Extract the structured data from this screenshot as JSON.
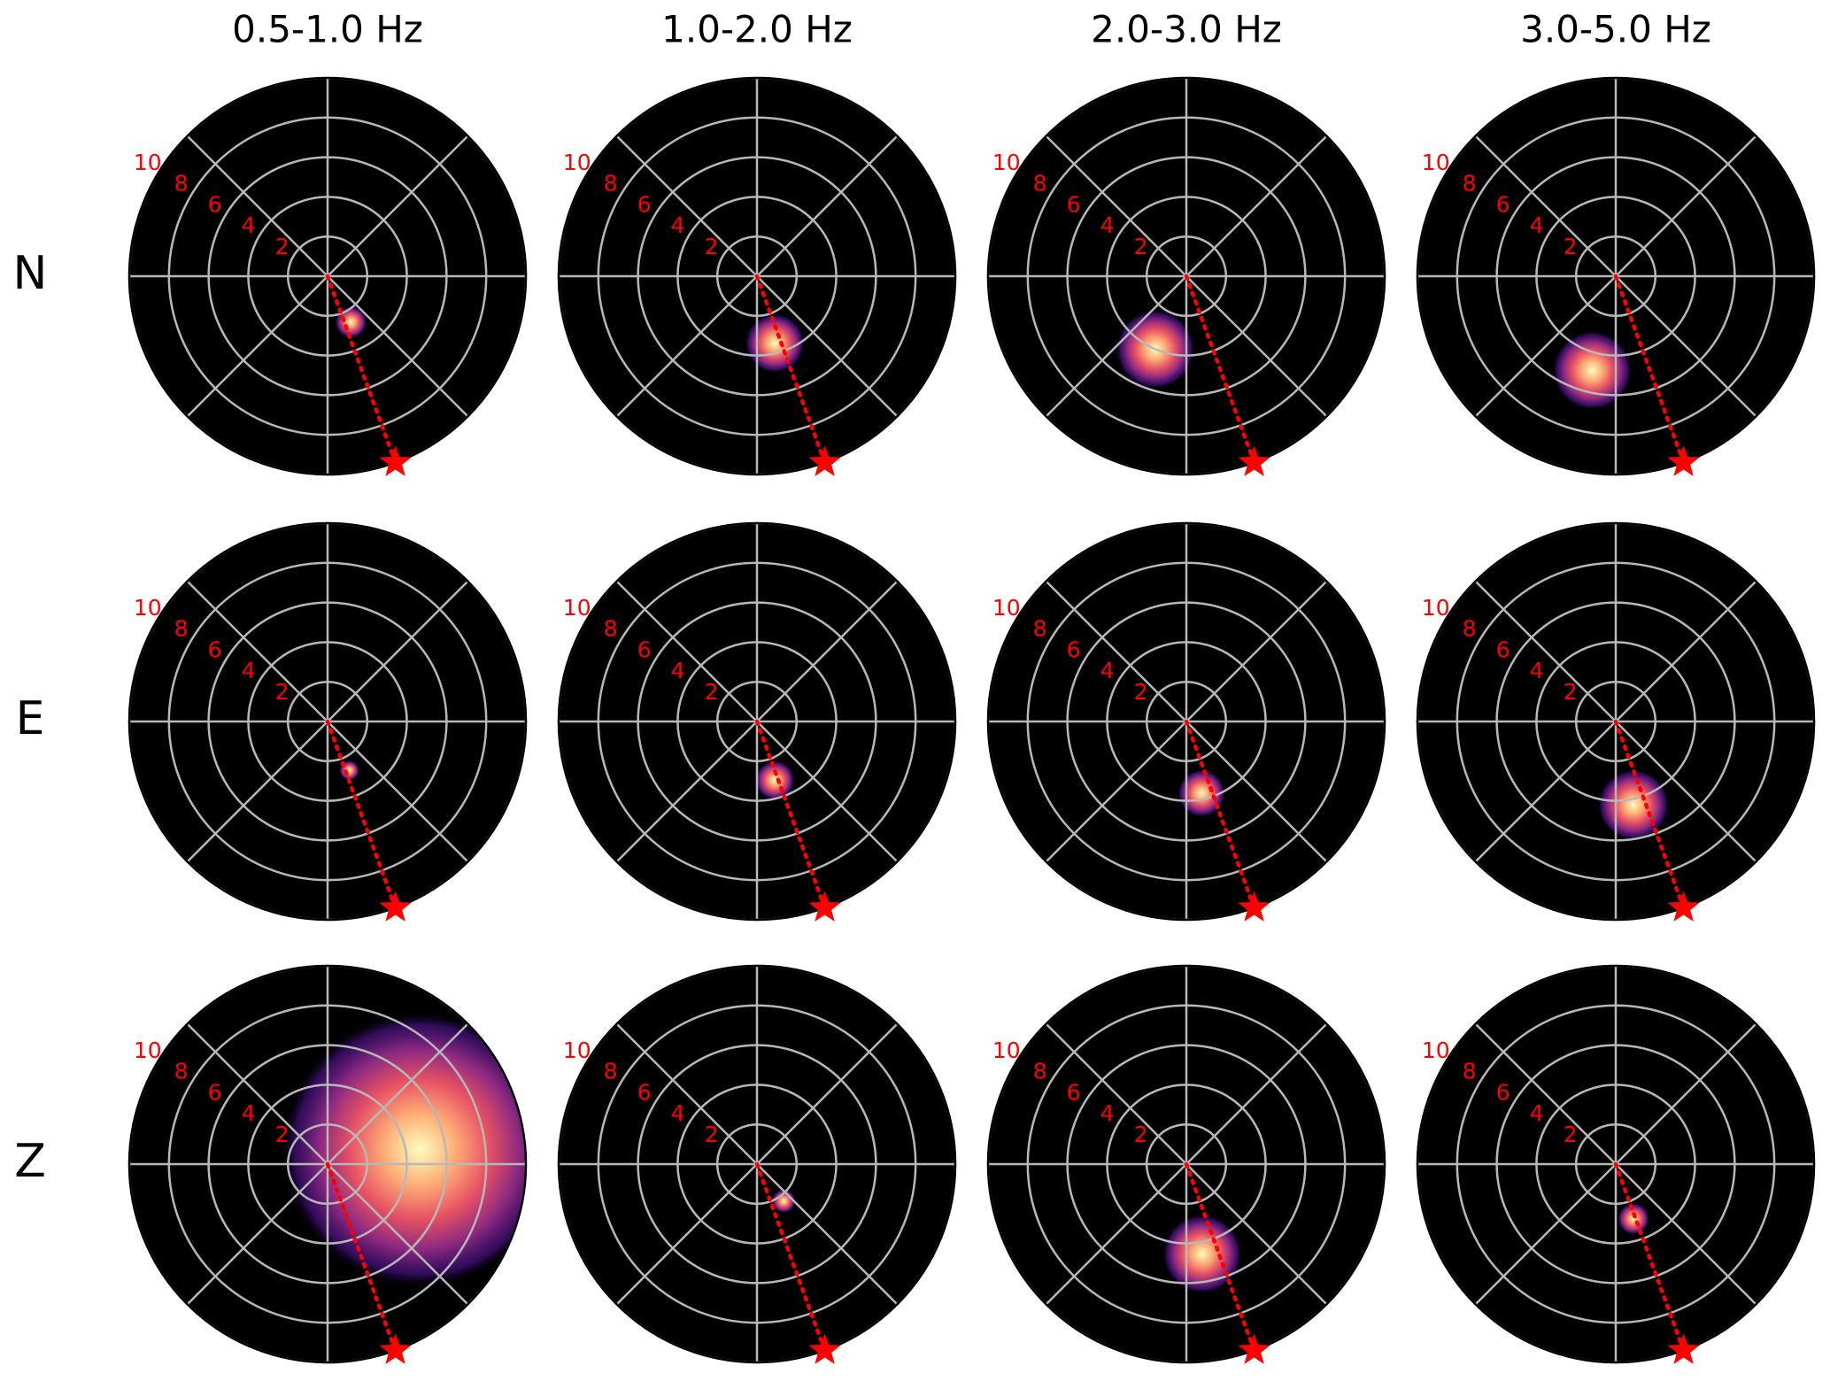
{
  "column_titles": [
    "0.5-1.0 Hz",
    "1.0-2.0 Hz",
    "2.0-3.0 Hz",
    "3.0-5.0 Hz"
  ],
  "row_labels": [
    "N",
    "E",
    "Z"
  ],
  "style": {
    "background": "#000000",
    "grid_color": "#b8b8b8",
    "label_color": "#ff0000",
    "source_color": "#ff0000"
  },
  "chart_data": [
    {
      "type": "polar",
      "rlim": [
        0,
        10
      ],
      "rticks": [
        2,
        4,
        6,
        8,
        10
      ],
      "thetaticks": [
        0,
        45,
        90,
        135,
        180,
        225,
        270,
        315
      ],
      "source": {
        "azimuth": 160,
        "distance": 10
      },
      "hotspot": {
        "azimuth": 153,
        "distance": 2.6,
        "spread": 0.8
      }
    },
    {
      "type": "polar",
      "rlim": [
        0,
        10
      ],
      "rticks": [
        2,
        4,
        6,
        8,
        10
      ],
      "thetaticks": [
        0,
        45,
        90,
        135,
        180,
        225,
        270,
        315
      ],
      "source": {
        "azimuth": 160,
        "distance": 10
      },
      "hotspot": {
        "azimuth": 165,
        "distance": 3.5,
        "spread": 1.5
      }
    },
    {
      "type": "polar",
      "rlim": [
        0,
        10
      ],
      "rticks": [
        2,
        4,
        6,
        8,
        10
      ],
      "thetaticks": [
        0,
        45,
        90,
        135,
        180,
        225,
        270,
        315
      ],
      "source": {
        "azimuth": 160,
        "distance": 10
      },
      "hotspot": {
        "azimuth": 203,
        "distance": 4,
        "spread": 2
      }
    },
    {
      "type": "polar",
      "rlim": [
        0,
        10
      ],
      "rticks": [
        2,
        4,
        6,
        8,
        10
      ],
      "thetaticks": [
        0,
        45,
        90,
        135,
        180,
        225,
        270,
        315
      ],
      "source": {
        "azimuth": 160,
        "distance": 10
      },
      "hotspot": {
        "azimuth": 194,
        "distance": 4.9,
        "spread": 2
      }
    },
    {
      "type": "polar",
      "rlim": [
        0,
        10
      ],
      "rticks": [
        2,
        4,
        6,
        8,
        10
      ],
      "thetaticks": [
        0,
        45,
        90,
        135,
        180,
        225,
        270,
        315
      ],
      "source": {
        "azimuth": 160,
        "distance": 10
      },
      "hotspot": {
        "azimuth": 156,
        "distance": 2.7,
        "spread": 0.5
      }
    },
    {
      "type": "polar",
      "rlim": [
        0,
        10
      ],
      "rticks": [
        2,
        4,
        6,
        8,
        10
      ],
      "thetaticks": [
        0,
        45,
        90,
        135,
        180,
        225,
        270,
        315
      ],
      "source": {
        "azimuth": 160,
        "distance": 10
      },
      "hotspot": {
        "azimuth": 163,
        "distance": 3.1,
        "spread": 1
      }
    },
    {
      "type": "polar",
      "rlim": [
        0,
        10
      ],
      "rticks": [
        2,
        4,
        6,
        8,
        10
      ],
      "thetaticks": [
        0,
        45,
        90,
        135,
        180,
        225,
        270,
        315
      ],
      "source": {
        "azimuth": 160,
        "distance": 10
      },
      "hotspot": {
        "azimuth": 168,
        "distance": 3.7,
        "spread": 1.2
      }
    },
    {
      "type": "polar",
      "rlim": [
        0,
        10
      ],
      "rticks": [
        2,
        4,
        6,
        8,
        10
      ],
      "thetaticks": [
        0,
        45,
        90,
        135,
        180,
        225,
        270,
        315
      ],
      "source": {
        "azimuth": 160,
        "distance": 10
      },
      "hotspot": {
        "azimuth": 168,
        "distance": 4.3,
        "spread": 1.8
      }
    },
    {
      "type": "polar",
      "rlim": [
        0,
        10
      ],
      "rticks": [
        2,
        4,
        6,
        8,
        10
      ],
      "thetaticks": [
        0,
        45,
        90,
        135,
        180,
        225,
        270,
        315
      ],
      "source": {
        "azimuth": 160,
        "distance": 10
      },
      "hotspot": {
        "azimuth": 81,
        "distance": 4.7,
        "spread": 7
      }
    },
    {
      "type": "polar",
      "rlim": [
        0,
        10
      ],
      "rticks": [
        2,
        4,
        6,
        8,
        10
      ],
      "thetaticks": [
        0,
        45,
        90,
        135,
        180,
        225,
        270,
        315
      ],
      "source": {
        "azimuth": 160,
        "distance": 10
      },
      "hotspot": {
        "azimuth": 144,
        "distance": 2.3,
        "spread": 0.6
      }
    },
    {
      "type": "polar",
      "rlim": [
        0,
        10
      ],
      "rticks": [
        2,
        4,
        6,
        8,
        10
      ],
      "thetaticks": [
        0,
        45,
        90,
        135,
        180,
        225,
        270,
        315
      ],
      "source": {
        "azimuth": 160,
        "distance": 10
      },
      "hotspot": {
        "azimuth": 170,
        "distance": 4.6,
        "spread": 2
      }
    },
    {
      "type": "polar",
      "rlim": [
        0,
        10
      ],
      "rticks": [
        2,
        4,
        6,
        8,
        10
      ],
      "thetaticks": [
        0,
        45,
        90,
        135,
        180,
        225,
        270,
        315
      ],
      "source": {
        "azimuth": 160,
        "distance": 10
      },
      "hotspot": {
        "azimuth": 162,
        "distance": 2.9,
        "spread": 0.8
      }
    }
  ]
}
